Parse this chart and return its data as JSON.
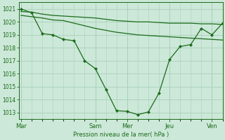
{
  "xlabel": "Pression niveau de la mer( hPa )",
  "ylim": [
    1012.5,
    1021.5
  ],
  "yticks": [
    1013,
    1014,
    1015,
    1016,
    1017,
    1018,
    1019,
    1020,
    1021
  ],
  "day_labels": [
    "Mar",
    "Sam",
    "Mer",
    "Jeu",
    "Ven"
  ],
  "day_x": [
    0.0,
    3.5,
    5.0,
    7.0,
    9.0
  ],
  "xlim": [
    -0.1,
    9.5
  ],
  "bg_color": "#cce8d8",
  "grid_color": "#aacfbb",
  "line_color": "#1a6b1a",
  "x_top": [
    0.0,
    0.5,
    1.0,
    1.5,
    2.0,
    2.5,
    3.0,
    3.5,
    4.0,
    4.5,
    5.0,
    5.5,
    6.0,
    6.5,
    7.0,
    7.5,
    8.0,
    8.5,
    9.0,
    9.5
  ],
  "y_top": [
    1020.8,
    1020.75,
    1020.6,
    1020.5,
    1020.45,
    1020.4,
    1020.35,
    1020.3,
    1020.2,
    1020.1,
    1020.05,
    1020.0,
    1020.0,
    1019.95,
    1019.9,
    1019.9,
    1019.9,
    1019.85,
    1019.85,
    1019.8
  ],
  "x_mid": [
    0.0,
    0.5,
    1.0,
    1.5,
    2.0,
    2.5,
    3.0,
    3.5,
    4.0,
    4.5,
    5.0,
    5.5,
    6.0,
    6.5,
    7.0,
    7.5,
    8.0,
    8.5,
    9.0,
    9.5
  ],
  "y_mid": [
    1020.5,
    1020.4,
    1020.3,
    1020.15,
    1020.1,
    1019.9,
    1019.7,
    1019.5,
    1019.35,
    1019.2,
    1019.1,
    1019.0,
    1018.95,
    1018.9,
    1018.85,
    1018.8,
    1018.75,
    1018.7,
    1018.65,
    1018.6
  ],
  "x_main": [
    0.0,
    0.5,
    1.0,
    1.5,
    2.0,
    2.5,
    3.0,
    3.5,
    4.0,
    4.5,
    5.0,
    5.5,
    6.0,
    6.5,
    7.0,
    7.5,
    8.0,
    8.5,
    9.0,
    9.5
  ],
  "y_main": [
    1021.0,
    1020.7,
    1019.1,
    1019.0,
    1018.65,
    1018.55,
    1017.0,
    1016.4,
    1014.8,
    1013.15,
    1013.1,
    1012.85,
    1013.05,
    1014.5,
    1017.1,
    1018.1,
    1018.25,
    1019.5,
    1019.0,
    1019.9
  ]
}
